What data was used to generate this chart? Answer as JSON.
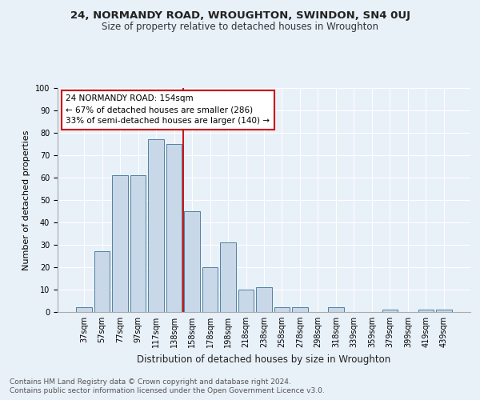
{
  "title": "24, NORMANDY ROAD, WROUGHTON, SWINDON, SN4 0UJ",
  "subtitle": "Size of property relative to detached houses in Wroughton",
  "xlabel": "Distribution of detached houses by size in Wroughton",
  "ylabel": "Number of detached properties",
  "footnote1": "Contains HM Land Registry data © Crown copyright and database right 2024.",
  "footnote2": "Contains public sector information licensed under the Open Government Licence v3.0.",
  "annotation_line1": "24 NORMANDY ROAD: 154sqm",
  "annotation_line2": "← 67% of detached houses are smaller (286)",
  "annotation_line3": "33% of semi-detached houses are larger (140) →",
  "bar_labels": [
    "37sqm",
    "57sqm",
    "77sqm",
    "97sqm",
    "117sqm",
    "138sqm",
    "158sqm",
    "178sqm",
    "198sqm",
    "218sqm",
    "238sqm",
    "258sqm",
    "278sqm",
    "298sqm",
    "318sqm",
    "339sqm",
    "359sqm",
    "379sqm",
    "399sqm",
    "419sqm",
    "439sqm"
  ],
  "bar_values": [
    2,
    27,
    61,
    61,
    77,
    75,
    45,
    20,
    31,
    10,
    11,
    2,
    2,
    0,
    2,
    0,
    0,
    1,
    0,
    1,
    1
  ],
  "bar_color": "#c8d8e8",
  "bar_edge_color": "#5080a0",
  "vline_color": "#cc0000",
  "background_color": "#e8f0f8",
  "ylim": [
    0,
    100
  ],
  "title_fontsize": 9.5,
  "subtitle_fontsize": 8.5,
  "xlabel_fontsize": 8.5,
  "ylabel_fontsize": 8,
  "tick_fontsize": 7,
  "annotation_fontsize": 7.5,
  "footnote_fontsize": 6.5
}
